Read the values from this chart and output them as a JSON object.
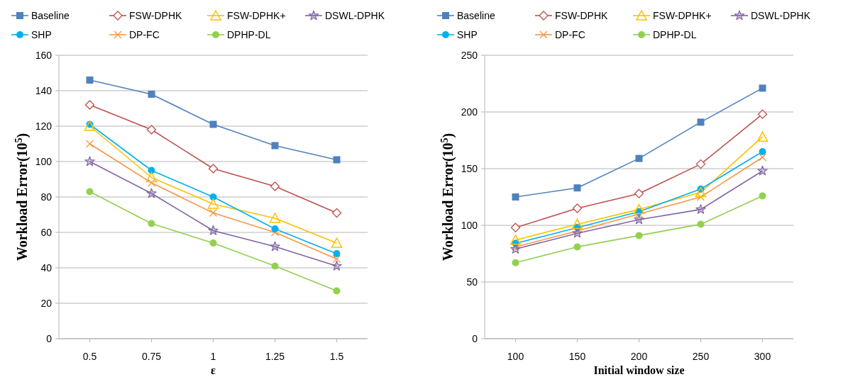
{
  "chart_data": [
    {
      "type": "line",
      "xlabel": "ε",
      "ylabel": "Workload Error(10$^{5}$)",
      "categories": [
        "0.5",
        "0.75",
        "1",
        "1.25",
        "1.5"
      ],
      "ylim": [
        0,
        160
      ],
      "yticks": [
        0,
        20,
        40,
        60,
        80,
        100,
        120,
        140,
        160
      ],
      "grid": "y",
      "legend": "top",
      "series": [
        {
          "name": "Baseline",
          "color": "#4f81bd",
          "marker": "square",
          "values": [
            146,
            138,
            121,
            109,
            101
          ]
        },
        {
          "name": "FSW-DPHK",
          "color": "#c0504d",
          "marker": "diamond",
          "values": [
            132,
            118,
            96,
            86,
            71
          ]
        },
        {
          "name": "FSW-DPHK+",
          "color": "#ffc000",
          "marker": "triangle",
          "values": [
            120,
            91,
            76,
            68,
            54
          ]
        },
        {
          "name": "DSWL-DPHK",
          "color": "#8064a2",
          "marker": "star",
          "values": [
            100,
            82,
            61,
            52,
            41
          ]
        },
        {
          "name": "SHP",
          "color": "#00b0f0",
          "marker": "circle",
          "values": [
            121,
            95,
            80,
            62,
            48
          ]
        },
        {
          "name": "DP-FC",
          "color": "#f79646",
          "marker": "cross",
          "values": [
            110,
            88,
            71,
            60,
            45
          ]
        },
        {
          "name": "DPHP-DL",
          "color": "#92d050",
          "marker": "circle",
          "values": [
            83,
            65,
            54,
            41,
            27
          ]
        }
      ]
    },
    {
      "type": "line",
      "xlabel": "Initial window size",
      "ylabel": "Workload Error(10$^{5}$)",
      "categories": [
        "100",
        "150",
        "200",
        "250",
        "300"
      ],
      "ylim": [
        0,
        250
      ],
      "yticks": [
        0,
        50,
        100,
        150,
        200,
        250
      ],
      "grid": "y",
      "legend": "top",
      "series": [
        {
          "name": "Baseline",
          "color": "#4f81bd",
          "marker": "square",
          "values": [
            125,
            133,
            159,
            191,
            221
          ]
        },
        {
          "name": "FSW-DPHK",
          "color": "#c0504d",
          "marker": "diamond",
          "values": [
            98,
            115,
            128,
            154,
            198
          ]
        },
        {
          "name": "FSW-DPHK+",
          "color": "#ffc000",
          "marker": "triangle",
          "values": [
            87,
            101,
            114,
            129,
            178
          ]
        },
        {
          "name": "DSWL-DPHK",
          "color": "#8064a2",
          "marker": "star",
          "values": [
            79,
            93,
            105,
            114,
            148
          ]
        },
        {
          "name": "SHP",
          "color": "#00b0f0",
          "marker": "circle",
          "values": [
            84,
            98,
            112,
            132,
            165
          ]
        },
        {
          "name": "DP-FC",
          "color": "#f79646",
          "marker": "cross",
          "values": [
            81,
            95,
            110,
            125,
            160
          ]
        },
        {
          "name": "DPHP-DL",
          "color": "#92d050",
          "marker": "circle",
          "values": [
            67,
            81,
            91,
            101,
            126
          ]
        }
      ]
    }
  ]
}
